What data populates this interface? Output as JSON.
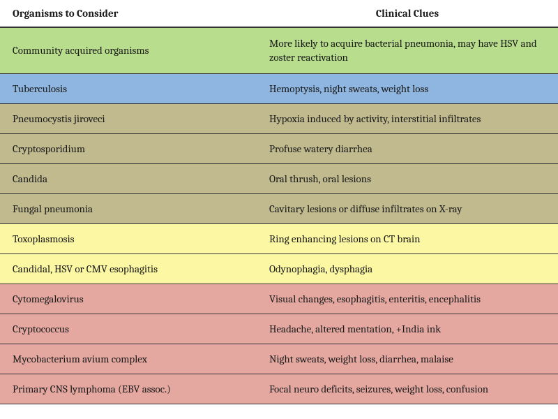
{
  "table": {
    "headers": {
      "organisms": "Organisms to Consider",
      "clues": "Clinical Clues"
    },
    "column_widths_pct": [
      46,
      54
    ],
    "header_bg": "#ffffff",
    "header_fontsize_pt": 13,
    "body_fontsize_pt": 13,
    "border_color": "#333333",
    "row_colors": {
      "green": "#b8dd8c",
      "blue": "#8fb6e0",
      "tan": "#c0ba8e",
      "yellow": "#fcf7a3",
      "pink": "#e4a8a0"
    },
    "rows": [
      {
        "color": "green",
        "organism": "Community acquired organisms",
        "clue": "More likely to acquire bacterial pneumonia, may have HSV and zoster reactivation",
        "multiline": true
      },
      {
        "color": "blue",
        "organism": "Tuberculosis",
        "clue": "Hemoptysis, night sweats, weight loss"
      },
      {
        "color": "tan",
        "organism": "Pneumocystis jiroveci",
        "clue": "Hypoxia induced by activity, interstitial infiltrates"
      },
      {
        "color": "tan",
        "organism": "Cryptosporidium",
        "clue": "Profuse watery diarrhea"
      },
      {
        "color": "tan",
        "organism": "Candida",
        "clue": "Oral thrush, oral lesions"
      },
      {
        "color": "tan",
        "organism": "Fungal pneumonia",
        "clue": "Cavitary lesions or diffuse infiltrates on X-ray"
      },
      {
        "color": "yellow",
        "organism": "Toxoplasmosis",
        "clue": "Ring enhancing lesions on CT brain"
      },
      {
        "color": "yellow",
        "organism": "Candidal, HSV or CMV esophagitis",
        "clue": "Odynophagia, dysphagia"
      },
      {
        "color": "pink",
        "organism": "Cytomegalovirus",
        "clue": "Visual changes, esophagitis, enteritis, encephalitis"
      },
      {
        "color": "pink",
        "organism": "Cryptococcus",
        "clue": "Headache, altered mentation, +India ink"
      },
      {
        "color": "pink",
        "organism": "Mycobacterium avium complex",
        "clue": "Night sweats, weight loss, diarrhea, malaise"
      },
      {
        "color": "pink",
        "organism": "Primary CNS lymphoma (EBV assoc.)",
        "clue": "Focal neuro deficits, seizures, weight loss, confusion"
      }
    ]
  }
}
